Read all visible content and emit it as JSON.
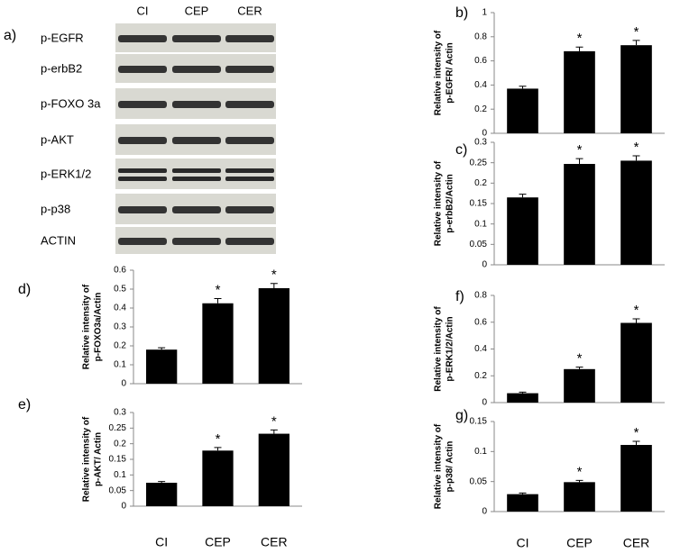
{
  "blot": {
    "panel": "a)",
    "lanes": [
      "CI",
      "CEP",
      "CER"
    ],
    "rows": [
      "p-EGFR",
      "p-erbB2",
      "p-FOXO 3a",
      "p-AKT",
      "p-ERK1/2",
      "p-p38",
      "ACTIN"
    ]
  },
  "chart_data": [
    {
      "type": "bar",
      "panel": "b)",
      "ylabel": [
        "Relative intensity of",
        "p-EGFR/ Actin"
      ],
      "categories": [
        null,
        null,
        null
      ],
      "values": [
        0.37,
        0.68,
        0.73
      ],
      "errors": [
        0.02,
        0.035,
        0.04
      ],
      "significance": [
        null,
        "*",
        "*"
      ],
      "color": "#000000",
      "ylim": [
        0,
        1
      ],
      "yticks": [
        0,
        0.2,
        0.4,
        0.6,
        0.8,
        1
      ]
    },
    {
      "type": "bar",
      "panel": "c)",
      "ylabel": [
        "Relative intensity of",
        "p-erbB2/Actin"
      ],
      "categories": [
        null,
        null,
        null
      ],
      "values": [
        0.165,
        0.247,
        0.255
      ],
      "errors": [
        0.008,
        0.013,
        0.012
      ],
      "significance": [
        null,
        "*",
        "*"
      ],
      "color": "#000000",
      "ylim": [
        0,
        0.3
      ],
      "yticks": [
        0,
        0.05,
        0.1,
        0.15,
        0.2,
        0.25,
        0.3
      ]
    },
    {
      "type": "bar",
      "panel": "d)",
      "ylabel": [
        "Relative intensity of",
        "p-FOXO3a/Actin"
      ],
      "categories": [
        null,
        null,
        null
      ],
      "values": [
        0.18,
        0.425,
        0.505
      ],
      "errors": [
        0.01,
        0.025,
        0.025
      ],
      "significance": [
        null,
        "*",
        "*"
      ],
      "color": "#000000",
      "ylim": [
        0,
        0.6
      ],
      "yticks": [
        0,
        0.1,
        0.2,
        0.3,
        0.4,
        0.5,
        0.6
      ]
    },
    {
      "type": "bar",
      "panel": "e)",
      "ylabel": [
        "Relative intensity of",
        "p-AKT/ Actin"
      ],
      "categories": [
        "CI",
        "CEP",
        "CER"
      ],
      "values": [
        0.075,
        0.178,
        0.232
      ],
      "errors": [
        0.004,
        0.01,
        0.012
      ],
      "significance": [
        null,
        "*",
        "*"
      ],
      "color": "#000000",
      "ylim": [
        0,
        0.3
      ],
      "yticks": [
        0,
        0.05,
        0.1,
        0.15,
        0.2,
        0.25,
        0.3
      ]
    },
    {
      "type": "bar",
      "panel": "f)",
      "ylabel": [
        "Relative intensity of",
        "p-ERK1/2/Actin"
      ],
      "categories": [
        null,
        null,
        null
      ],
      "values": [
        0.07,
        0.25,
        0.595
      ],
      "errors": [
        0.008,
        0.015,
        0.03
      ],
      "significance": [
        null,
        "*",
        "*"
      ],
      "color": "#000000",
      "ylim": [
        0,
        0.8
      ],
      "yticks": [
        0,
        0.2,
        0.4,
        0.6,
        0.8
      ]
    },
    {
      "type": "bar",
      "panel": "g)",
      "ylabel": [
        "Relative intensity of",
        "p-p38/ Actin"
      ],
      "categories": [
        "CI",
        "CEP",
        "CER"
      ],
      "values": [
        0.029,
        0.049,
        0.111
      ],
      "errors": [
        0.002,
        0.003,
        0.006
      ],
      "significance": [
        null,
        "*",
        "*"
      ],
      "color": "#000000",
      "ylim": [
        0,
        0.15
      ],
      "yticks": [
        0,
        0.05,
        0.1,
        0.15
      ]
    }
  ]
}
